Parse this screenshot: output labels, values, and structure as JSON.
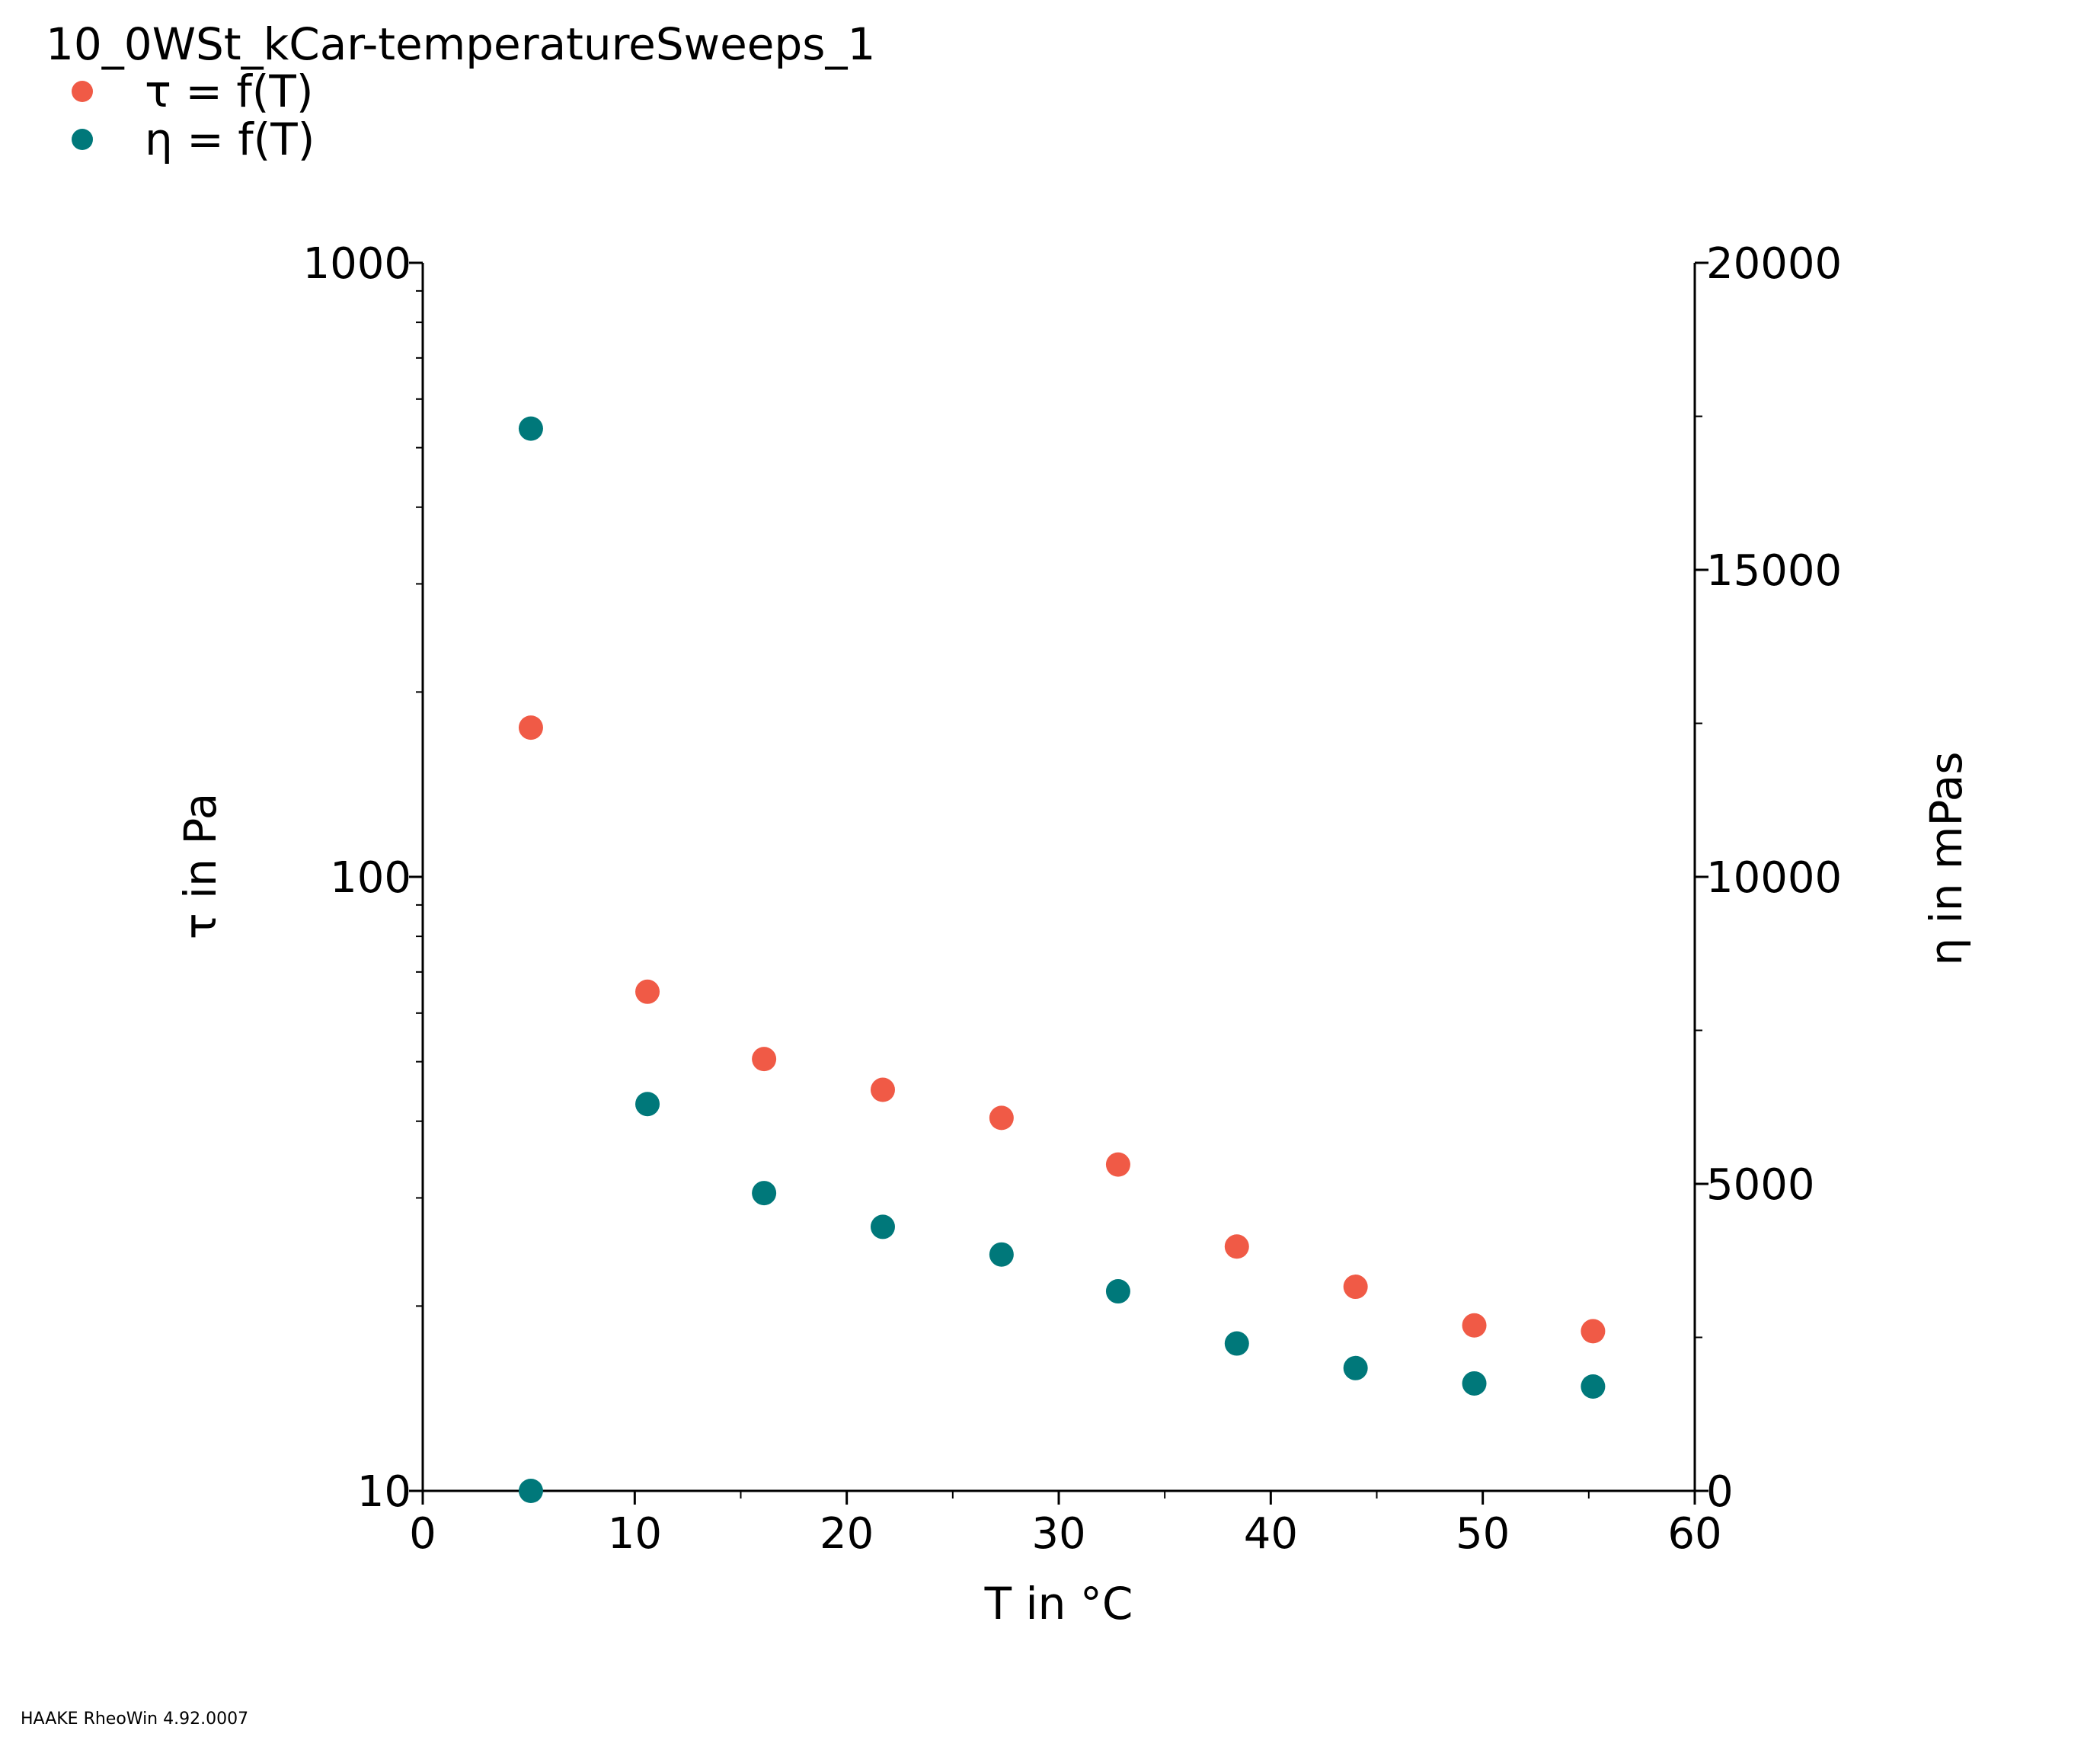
{
  "footer": "HAAKE RheoWin 4.92.0007",
  "chart_data": {
    "type": "scatter",
    "title": "10_0WSt_kCar-temperatureSweeps_1",
    "xlabel": "T in °C",
    "ylabel_left": "τ in Pa",
    "ylabel_right": "η in mPas",
    "xlim": [
      0,
      60
    ],
    "ylim_left": [
      10,
      1000
    ],
    "ylim_right": [
      0,
      20000
    ],
    "y_left_scale": "log",
    "y_right_scale": "linear",
    "x_ticks": [
      "0",
      "10",
      "20",
      "30",
      "40",
      "50",
      "60"
    ],
    "y_left_ticks": [
      "10",
      "100",
      "1000"
    ],
    "y_right_ticks": [
      "0",
      "5000",
      "10000",
      "15000",
      "20000"
    ],
    "grid": false,
    "legend_position": "top-left",
    "series": [
      {
        "name": "τ = f(T)",
        "axis": "left",
        "color": "#f05a46",
        "x": [
          5.1,
          10.6,
          16.1,
          21.7,
          27.3,
          32.8,
          38.4,
          44.0,
          49.6,
          55.2
        ],
        "y": [
          175,
          65,
          50.5,
          45,
          40.5,
          34,
          25,
          21.5,
          18.6,
          18.2
        ]
      },
      {
        "name": "η = f(T)",
        "axis": "right",
        "color": "#00787a",
        "x": [
          5.1,
          5.1,
          10.6,
          16.1,
          21.7,
          27.3,
          32.8,
          38.4,
          44.0,
          49.6,
          55.2
        ],
        "y": [
          0,
          17300,
          6300,
          4850,
          4300,
          3850,
          3250,
          2400,
          2000,
          1750,
          1700
        ]
      }
    ]
  }
}
